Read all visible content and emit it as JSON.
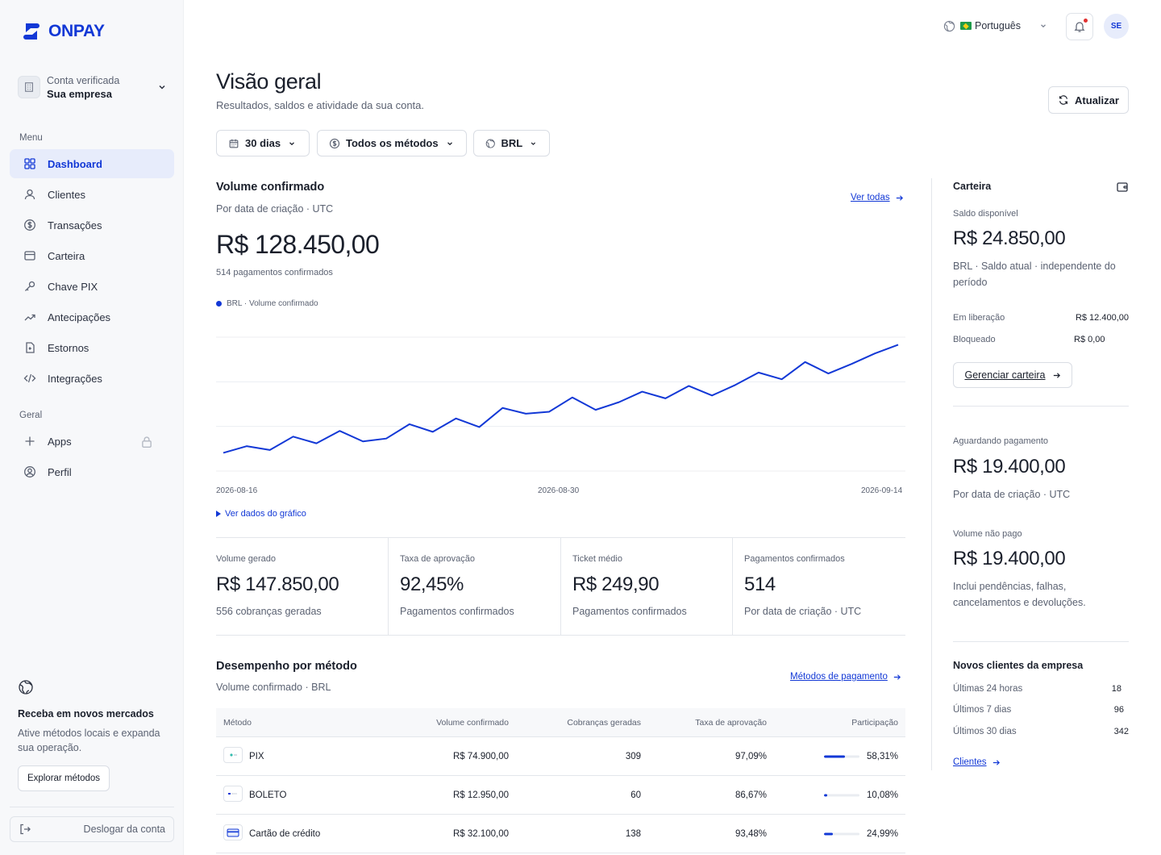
{
  "brand": {
    "name": "ONPAY",
    "color": "#1238d6"
  },
  "account": {
    "label": "Conta verificada",
    "name": "Sua empresa"
  },
  "sidebar": {
    "menu_title": "Menu",
    "menu": [
      {
        "label": "Dashboard",
        "icon": "grid-icon",
        "active": true
      },
      {
        "label": "Clientes",
        "icon": "user-icon"
      },
      {
        "label": "Transações",
        "icon": "dollar-circle-icon"
      },
      {
        "label": "Carteira",
        "icon": "card-icon"
      },
      {
        "label": "Chave PIX",
        "icon": "key-icon"
      },
      {
        "label": "Antecipações",
        "icon": "trend-icon"
      },
      {
        "label": "Estornos",
        "icon": "refund-icon"
      },
      {
        "label": "Integrações",
        "icon": "code-icon"
      }
    ],
    "general_title": "Geral",
    "general": [
      {
        "label": "Apps",
        "icon": "plus-icon",
        "locked": true
      },
      {
        "label": "Perfil",
        "icon": "profile-icon"
      }
    ],
    "promo": {
      "title": "Receba em novos mercados",
      "desc": "Ative métodos locais e expanda sua operação.",
      "button": "Explorar métodos"
    },
    "logout": "Deslogar da conta"
  },
  "topbar": {
    "language": "Português",
    "avatar": "SE"
  },
  "header": {
    "title": "Visão geral",
    "subtitle": "Resultados, saldos e atividade da sua conta.",
    "refresh": "Atualizar"
  },
  "filters": {
    "period": "30 dias",
    "methods": "Todos os métodos",
    "currency": "BRL"
  },
  "volume": {
    "title": "Volume confirmado",
    "subtitle": "Por data de criação · UTC",
    "link": "Ver todas",
    "value": "R$ 128.450,00",
    "count": "514 pagamentos confirmados",
    "toggle": "Ver dados do gráfico"
  },
  "chart_data": {
    "type": "line",
    "series": [
      {
        "name": "BRL · Volume confirmado",
        "values": [
          1.9,
          2.6,
          2.2,
          3.6,
          2.9,
          4.2,
          3.1,
          3.4,
          4.9,
          4.1,
          5.5,
          4.6,
          6.6,
          6.0,
          6.2,
          7.7,
          6.4,
          7.2,
          8.3,
          7.6,
          8.9,
          7.9,
          9.0,
          10.3,
          9.6,
          11.4,
          10.2,
          11.2,
          12.3,
          13.2
        ]
      }
    ],
    "xticks": [
      "2026-08-16",
      "2026-08-30",
      "2026-09-14"
    ],
    "color": "#1238d6",
    "grid": true
  },
  "kpis": [
    {
      "label": "Volume gerado",
      "value": "R$ 147.850,00",
      "note": "556 cobranças geradas"
    },
    {
      "label": "Taxa de aprovação",
      "value": "92,45%",
      "note": "Pagamentos confirmados"
    },
    {
      "label": "Ticket médio",
      "value": "R$ 249,90",
      "note": "Pagamentos confirmados"
    },
    {
      "label": "Pagamentos confirmados",
      "value": "514",
      "note": "Por data de criação · UTC"
    }
  ],
  "methods": {
    "title": "Desempenho por método",
    "subtitle": "Volume confirmado · BRL",
    "link": "Métodos de pagamento",
    "columns": [
      "Método",
      "Volume confirmado",
      "Cobranças geradas",
      "Taxa de aprovação",
      "Participação"
    ],
    "rows": [
      {
        "name": "PIX",
        "icon": "pix-icon",
        "volume": "R$ 74.900,00",
        "charges": "309",
        "rate": "97,09%",
        "share": "58,31%",
        "share_value": 58.31
      },
      {
        "name": "BOLETO",
        "icon": "boleto-icon",
        "volume": "R$ 12.950,00",
        "charges": "60",
        "rate": "86,67%",
        "share": "10,08%",
        "share_value": 10.08
      },
      {
        "name": "Cartão de crédito",
        "icon": "credit-card-icon",
        "volume": "R$ 32.100,00",
        "charges": "138",
        "rate": "93,48%",
        "share": "24,99%",
        "share_value": 24.99
      }
    ]
  },
  "wallet": {
    "title": "Carteira",
    "available_label": "Saldo disponível",
    "available": "R$ 24.850,00",
    "available_note": "BRL · Saldo atual · independente do período",
    "releasing_label": "Em liberação",
    "releasing": "R$ 12.400,00",
    "blocked_label": "Bloqueado",
    "blocked": "R$ 0,00",
    "manage": "Gerenciar carteira",
    "pending_label": "Aguardando pagamento",
    "pending": "R$ 19.400,00",
    "pending_note": "Por data de criação · UTC",
    "unpaid_label": "Volume não pago",
    "unpaid": "R$ 19.400,00",
    "unpaid_note": "Inclui pendências, falhas, cancelamentos e devoluções."
  },
  "new_clients": {
    "title": "Novos clientes da empresa",
    "rows": [
      {
        "label": "Últimas 24 horas",
        "value": "18"
      },
      {
        "label": "Últimos 7 dias",
        "value": "96"
      },
      {
        "label": "Últimos 30 dias",
        "value": "342"
      }
    ],
    "link": "Clientes"
  }
}
